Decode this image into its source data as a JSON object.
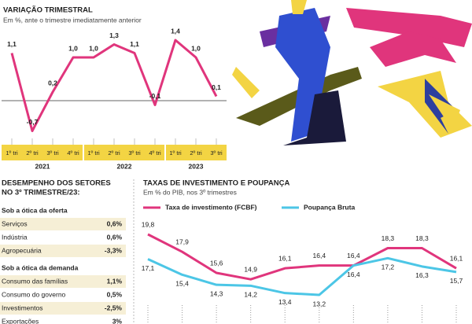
{
  "chart_data": [
    {
      "type": "line",
      "title": "VARIAÇÃO TRIMESTRAL",
      "subtitle": "Em %, ante o trimestre imediatamente anterior",
      "categories": [
        "1º tri",
        "2º tri",
        "3º tri",
        "4º tri",
        "1º tri",
        "2º tri",
        "3º tri",
        "4º tri",
        "1º tri",
        "2º tri",
        "3º tri"
      ],
      "groups": [
        "2021",
        "2022",
        "2023"
      ],
      "values": [
        1.1,
        -0.7,
        0.2,
        1.0,
        1.0,
        1.3,
        1.1,
        -0.1,
        1.4,
        1.0,
        0.1
      ],
      "value_labels": [
        "1,1",
        "-0,7",
        "0,2",
        "1,0",
        "1,0",
        "1,3",
        "1,1",
        "-0,1",
        "1,4",
        "1,0",
        "0,1"
      ],
      "color": "#e0357c",
      "band_color": "#f3d443"
    },
    {
      "type": "line",
      "title": "TAXAS DE INVESTIMENTO E POUPANÇA",
      "subtitle": "Em % do PIB, nos 3º trimestres",
      "categories": [
        null,
        null,
        null,
        null,
        null,
        null,
        null,
        null,
        null,
        null
      ],
      "series": [
        {
          "name": "Taxa de investimento (FCBF)",
          "color": "#e0357c",
          "values": [
            19.8,
            17.9,
            15.6,
            14.9,
            16.1,
            16.4,
            16.4,
            18.3,
            18.3,
            16.1
          ],
          "value_labels": [
            "19,8",
            "17,9",
            "15,6",
            "14,9",
            "16,1",
            "16,4",
            "16,4",
            "18,3",
            "18,3",
            "16,1"
          ]
        },
        {
          "name": "Poupança Bruta",
          "color": "#4cc6e6",
          "values": [
            17.1,
            15.4,
            14.3,
            14.2,
            13.4,
            13.2,
            16.4,
            17.2,
            16.3,
            15.7
          ],
          "value_labels": [
            "17,1",
            "15,4",
            "14,3",
            "14,2",
            "13,4",
            "13,2",
            "16,4",
            "17,2",
            "16,3",
            "15,7"
          ]
        }
      ]
    }
  ],
  "table": {
    "title": [
      "DESEMPENHO DOS SETORES",
      "NO 3º TRIMESTRE/23:"
    ],
    "sections": [
      {
        "heading": "Sob a ótica da oferta",
        "rows": [
          [
            "Serviços",
            "0,6%"
          ],
          [
            "Indústria",
            "0,6%"
          ],
          [
            "Agropecuária",
            "-3,3%"
          ]
        ]
      },
      {
        "heading": "Sob a ótica da demanda",
        "rows": [
          [
            "Consumo das famílias",
            "1,1%"
          ],
          [
            "Consumo do governo",
            "0,5%"
          ],
          [
            "Investimentos",
            "-2,5%"
          ],
          [
            "Exportações",
            "3%"
          ]
        ]
      }
    ]
  }
}
